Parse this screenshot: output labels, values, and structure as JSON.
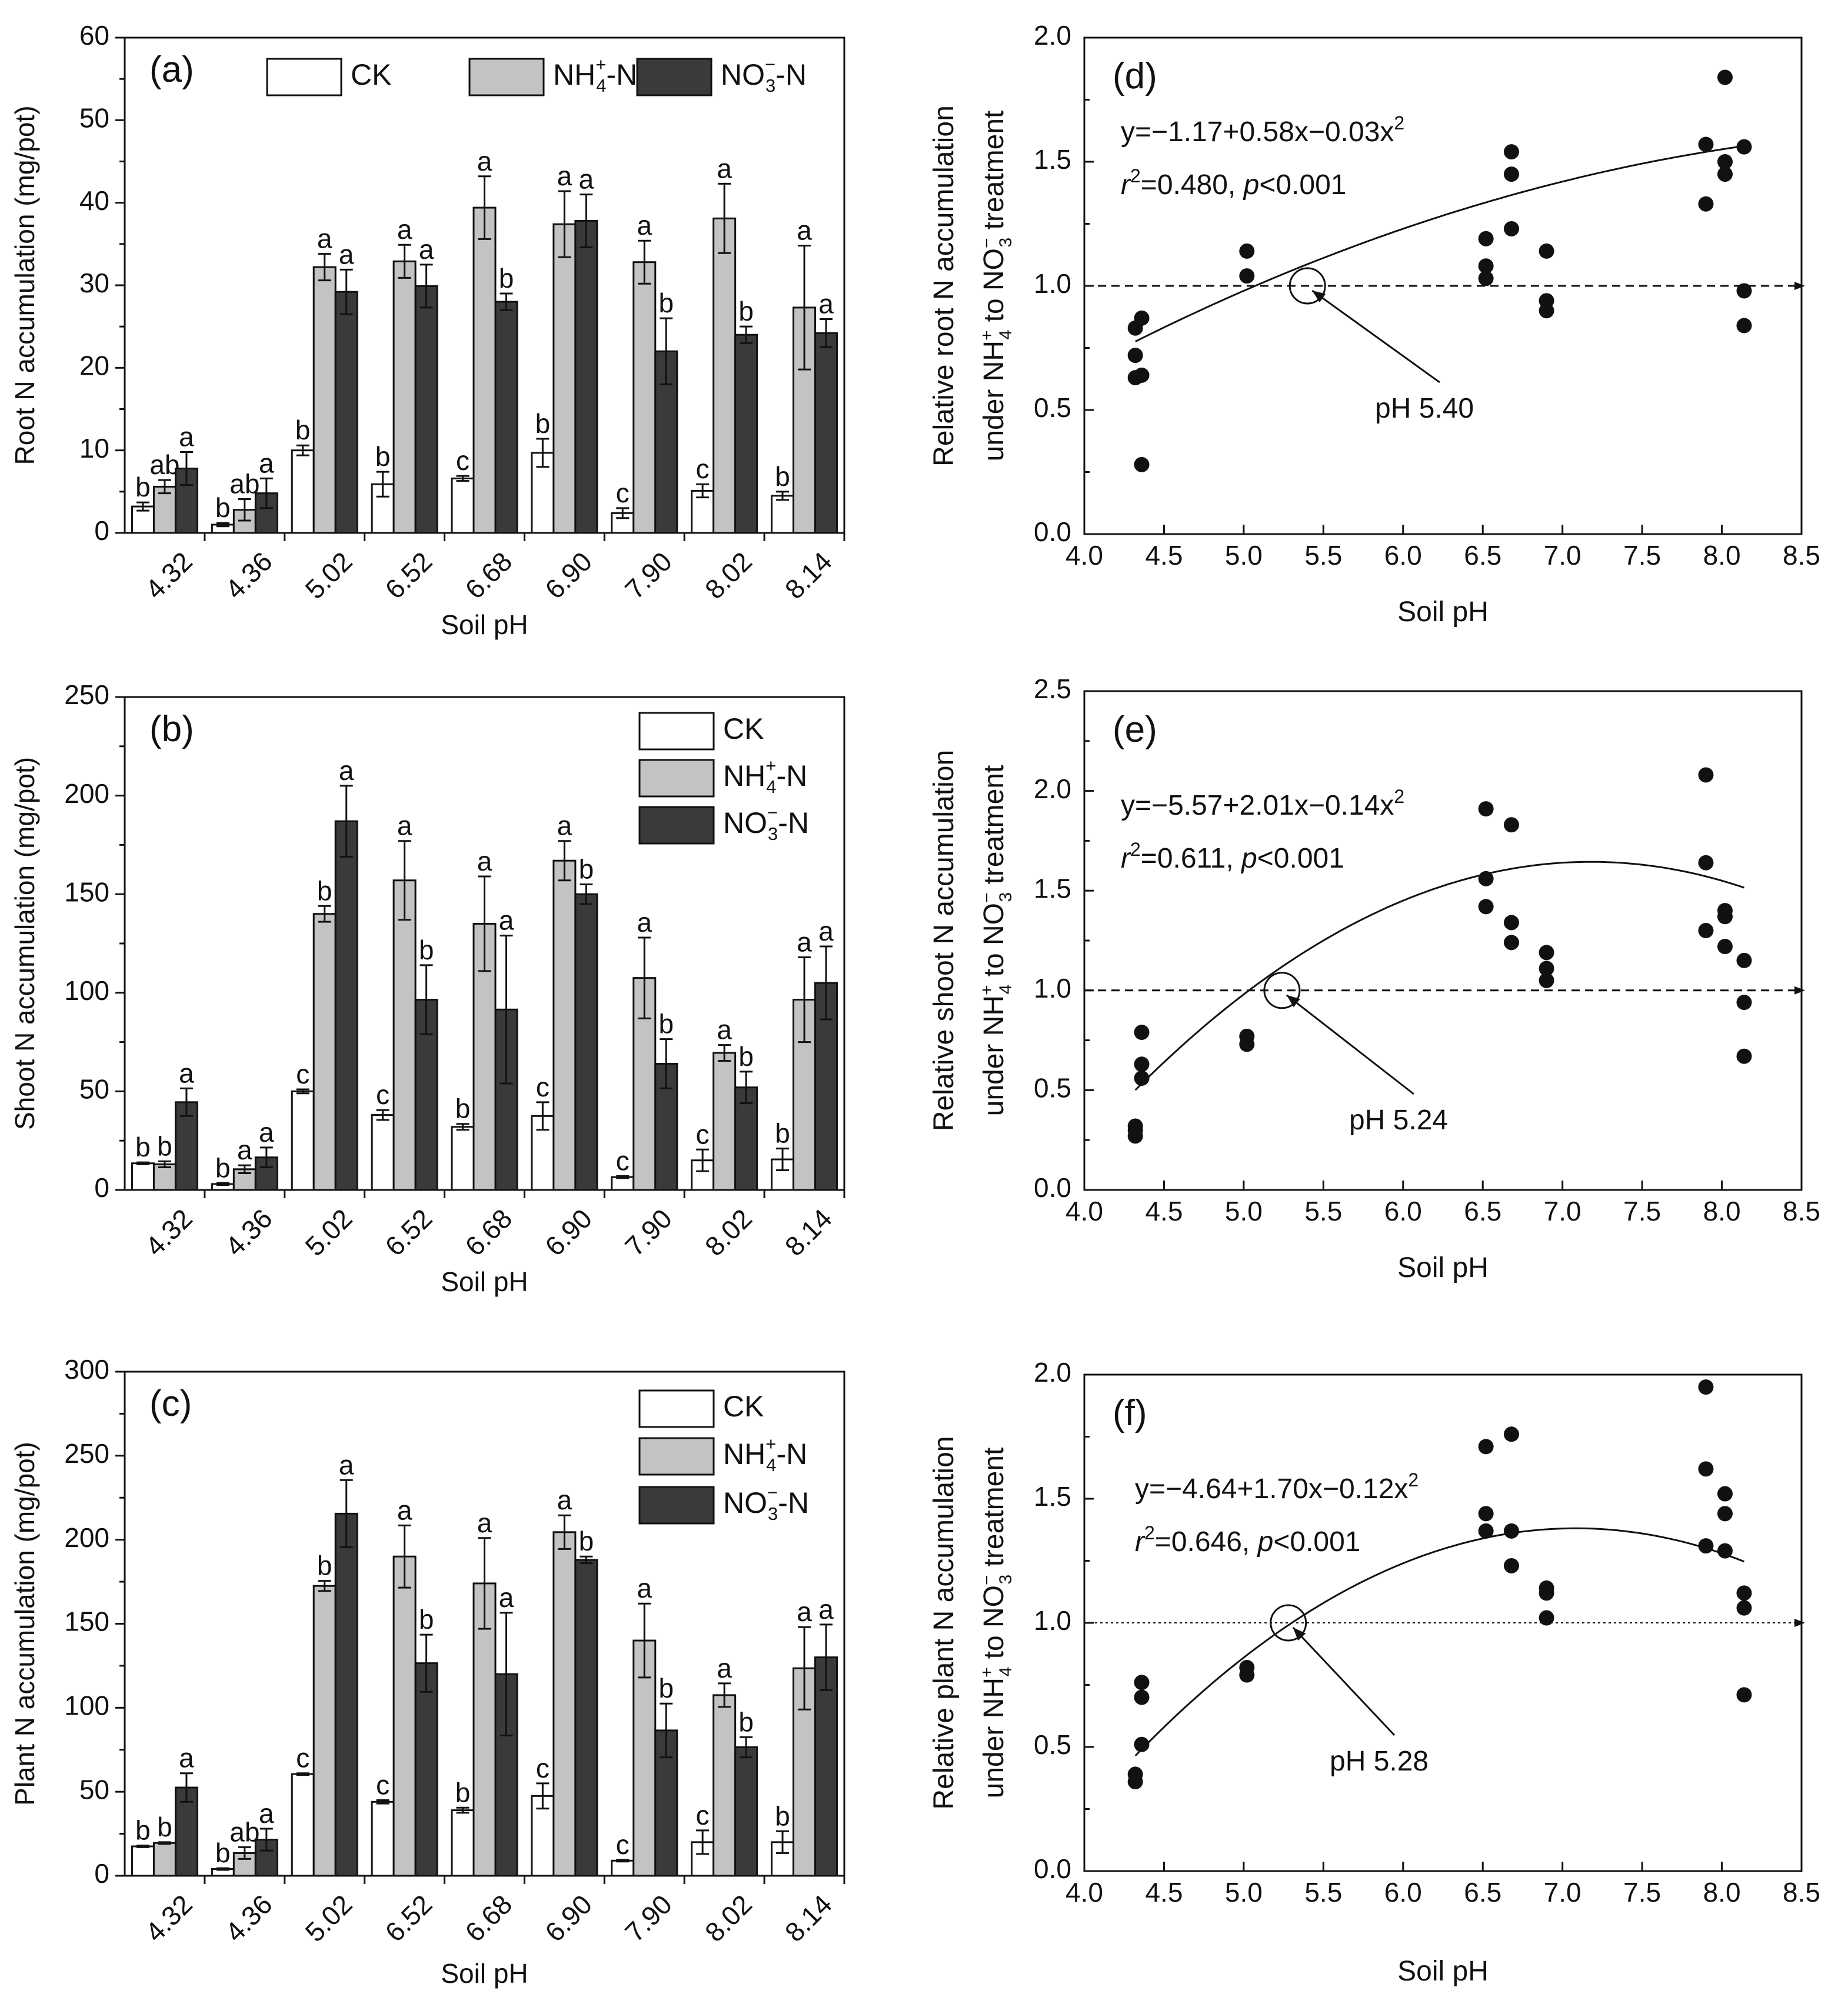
{
  "figure": {
    "colors": {
      "CK": "#ffffff",
      "NH4": "#c3c3c3",
      "NO3": "#3a3a3a",
      "ink": "#111111"
    }
  },
  "chart_data": [
    {
      "id": "a",
      "type": "bar",
      "panel_label": "(a)",
      "title": "",
      "xlabel": "Soil pH",
      "ylabel": "Root N accumulation (mg/pot)",
      "ylim": [
        0,
        60
      ],
      "yticks": [
        "0",
        "10",
        "20",
        "30",
        "40",
        "50",
        "60"
      ],
      "categories": [
        "4.32",
        "4.36",
        "5.02",
        "6.52",
        "6.68",
        "6.90",
        "7.90",
        "8.02",
        "8.14"
      ],
      "legend": {
        "layout": "row",
        "position": "top",
        "entries": [
          {
            "key": "CK",
            "base": "CK",
            "sup": "",
            "sub": "",
            "tail": ""
          },
          {
            "key": "NH4",
            "base": "NH",
            "sub": "4",
            "sup": "+",
            "tail": "-N"
          },
          {
            "key": "NO3",
            "base": "NO",
            "sub": "3",
            "sup": "−",
            "tail": "-N"
          }
        ]
      },
      "series": [
        {
          "name": "CK",
          "values": [
            3.2,
            1.0,
            10.0,
            5.9,
            6.6,
            9.7,
            2.4,
            5.1,
            4.5
          ],
          "errors": [
            0.5,
            0.2,
            0.6,
            1.5,
            0.3,
            1.7,
            0.6,
            0.8,
            0.5
          ],
          "letters": [
            "b",
            "b",
            "b",
            "b",
            "c",
            "b",
            "c",
            "c",
            "b"
          ]
        },
        {
          "name": "NH4+-N",
          "values": [
            5.6,
            2.8,
            32.2,
            32.9,
            39.4,
            37.4,
            32.8,
            38.1,
            27.3
          ],
          "errors": [
            0.8,
            1.3,
            1.6,
            2.0,
            3.8,
            4.0,
            2.6,
            4.2,
            7.5
          ],
          "letters": [
            "ab",
            "ab",
            "a",
            "a",
            "a",
            "a",
            "a",
            "a",
            "a"
          ]
        },
        {
          "name": "NO3--N",
          "values": [
            7.8,
            4.8,
            29.2,
            29.9,
            28.0,
            37.8,
            22.0,
            24.0,
            24.2
          ],
          "errors": [
            2.0,
            1.8,
            2.7,
            2.6,
            1.0,
            3.2,
            4.0,
            1.0,
            1.7
          ],
          "letters": [
            "a",
            "a",
            "a",
            "a",
            "b",
            "a",
            "b",
            "b",
            "a"
          ]
        }
      ]
    },
    {
      "id": "b",
      "type": "bar",
      "panel_label": "(b)",
      "title": "",
      "xlabel": "Soil pH",
      "ylabel": "Shoot N accumulation (mg/pot)",
      "ylim": [
        0,
        250
      ],
      "yticks": [
        "0",
        "50",
        "100",
        "150",
        "200",
        "250"
      ],
      "categories": [
        "4.32",
        "4.36",
        "5.02",
        "6.52",
        "6.68",
        "6.90",
        "7.90",
        "8.02",
        "8.14"
      ],
      "legend": {
        "layout": "column",
        "position": "top-right",
        "entries": [
          {
            "key": "CK",
            "base": "CK",
            "sup": "",
            "sub": "",
            "tail": ""
          },
          {
            "key": "NH4",
            "base": "NH",
            "sub": "4",
            "sup": "+",
            "tail": "-N"
          },
          {
            "key": "NO3",
            "base": "NO",
            "sub": "3",
            "sup": "−",
            "tail": "-N"
          }
        ]
      },
      "series": [
        {
          "name": "CK",
          "values": [
            13.5,
            3.0,
            50.0,
            38.0,
            32.0,
            37.5,
            6.5,
            15.0,
            15.5
          ],
          "errors": [
            0.5,
            0.5,
            1.0,
            2.5,
            1.5,
            7.0,
            0.5,
            5.5,
            5.5
          ],
          "letters": [
            "b",
            "b",
            "c",
            "c",
            "b",
            "c",
            "c",
            "c",
            "b"
          ]
        },
        {
          "name": "NH4+-N",
          "values": [
            13.0,
            10.5,
            140.0,
            157.0,
            135.0,
            167.0,
            107.5,
            69.5,
            96.5
          ],
          "errors": [
            1.5,
            2.0,
            4.0,
            20.0,
            24.0,
            10.0,
            20.5,
            4.0,
            21.5
          ],
          "letters": [
            "b",
            "a",
            "b",
            "a",
            "a",
            "a",
            "a",
            "a",
            "a"
          ]
        },
        {
          "name": "NO3--N",
          "values": [
            44.5,
            16.5,
            187.0,
            96.5,
            91.5,
            150.0,
            64.0,
            52.0,
            105.0
          ],
          "errors": [
            7.0,
            5.0,
            18.0,
            17.5,
            37.5,
            5.0,
            12.5,
            8.0,
            18.5
          ],
          "letters": [
            "a",
            "a",
            "a",
            "b",
            "a",
            "b",
            "b",
            "b",
            "a"
          ]
        }
      ]
    },
    {
      "id": "c",
      "type": "bar",
      "panel_label": "(c)",
      "title": "",
      "xlabel": "Soil pH",
      "ylabel": "Plant N accumulation (mg/pot)",
      "ylim": [
        0,
        300
      ],
      "yticks": [
        "0",
        "50",
        "100",
        "150",
        "200",
        "250",
        "300"
      ],
      "categories": [
        "4.32",
        "4.36",
        "5.02",
        "6.52",
        "6.68",
        "6.90",
        "7.90",
        "8.02",
        "8.14"
      ],
      "legend": {
        "layout": "column",
        "position": "top-right",
        "entries": [
          {
            "key": "CK",
            "base": "CK",
            "sup": "",
            "sub": "",
            "tail": ""
          },
          {
            "key": "NH4",
            "base": "NH",
            "sub": "4",
            "sup": "+",
            "tail": "-N"
          },
          {
            "key": "NO3",
            "base": "NO",
            "sub": "3",
            "sup": "−",
            "tail": "-N"
          }
        ]
      },
      "series": [
        {
          "name": "CK",
          "values": [
            17.5,
            4.0,
            60.5,
            44.0,
            39.0,
            47.5,
            9.0,
            20.0,
            20.0
          ],
          "errors": [
            0.5,
            0.5,
            0.5,
            1.0,
            1.5,
            7.5,
            0.5,
            7.0,
            6.5
          ],
          "letters": [
            "b",
            "b",
            "c",
            "c",
            "b",
            "c",
            "c",
            "c",
            "b"
          ]
        },
        {
          "name": "NH4+-N",
          "values": [
            19.5,
            13.5,
            172.5,
            190.0,
            174.0,
            204.5,
            140.0,
            107.5,
            123.5
          ],
          "errors": [
            0.5,
            3.5,
            3.0,
            18.5,
            27.0,
            10.0,
            22.0,
            7.0,
            24.5
          ],
          "letters": [
            "b",
            "ab",
            "b",
            "a",
            "a",
            "a",
            "a",
            "a",
            "a"
          ]
        },
        {
          "name": "NO3--N",
          "values": [
            52.5,
            21.5,
            215.5,
            126.5,
            120.0,
            188.0,
            86.5,
            76.5,
            130.0
          ],
          "errors": [
            8.5,
            6.5,
            20.0,
            17.0,
            36.5,
            2.0,
            16.0,
            6.0,
            19.5
          ],
          "letters": [
            "a",
            "a",
            "a",
            "b",
            "a",
            "b",
            "b",
            "b",
            "a"
          ]
        }
      ]
    },
    {
      "id": "d",
      "type": "scatter",
      "panel_label": "(d)",
      "xlabel": "Soil pH",
      "ylabel_line1": "Relative root N accumulation",
      "ylabel_line2": {
        "pre": "under NH",
        "sub1": "4",
        "sup1": "+",
        "mid": " to NO",
        "sub2": "3",
        "sup2": "−",
        "post": " treatment"
      },
      "xlim": [
        4.0,
        8.5
      ],
      "ylim": [
        0.0,
        2.0
      ],
      "xticks": [
        "4.0",
        "4.5",
        "5.0",
        "5.5",
        "6.0",
        "6.5",
        "7.0",
        "7.5",
        "8.0",
        "8.5"
      ],
      "yticks": [
        "0.0",
        "0.5",
        "1.0",
        "1.5",
        "2.0"
      ],
      "points": [
        [
          4.32,
          0.72
        ],
        [
          4.32,
          0.63
        ],
        [
          4.32,
          0.83
        ],
        [
          4.36,
          0.87
        ],
        [
          4.36,
          0.64
        ],
        [
          4.36,
          0.28
        ],
        [
          5.02,
          1.14
        ],
        [
          5.02,
          1.04
        ],
        [
          6.52,
          1.19
        ],
        [
          6.52,
          1.08
        ],
        [
          6.52,
          1.03
        ],
        [
          6.68,
          1.54
        ],
        [
          6.68,
          1.45
        ],
        [
          6.68,
          1.23
        ],
        [
          6.9,
          1.14
        ],
        [
          6.9,
          0.94
        ],
        [
          6.9,
          0.9
        ],
        [
          7.9,
          1.57
        ],
        [
          7.9,
          1.33
        ],
        [
          8.02,
          1.84
        ],
        [
          8.02,
          1.5
        ],
        [
          8.02,
          1.45
        ],
        [
          8.14,
          1.56
        ],
        [
          8.14,
          0.98
        ],
        [
          8.14,
          0.84
        ]
      ],
      "fit": {
        "a": -1.17,
        "b": 0.58,
        "c": -0.03,
        "x_range": [
          4.32,
          8.14
        ]
      },
      "equation": {
        "prefix": "y=−1.17+0.58x−0.03x",
        "sup": "2"
      },
      "stats": {
        "r": "r",
        "r_sup": "2",
        "r_value": "=0.480, ",
        "p": "p",
        "p_value": "<0.001"
      },
      "reference_y": 1.0,
      "crossing": {
        "x": 5.4,
        "label": "pH 5.40"
      }
    },
    {
      "id": "e",
      "type": "scatter",
      "panel_label": "(e)",
      "xlabel": "Soil pH",
      "ylabel_line1": "Relative shoot N accumulation",
      "ylabel_line2": {
        "pre": "under NH",
        "sub1": "4",
        "sup1": "+",
        "mid": " to NO",
        "sub2": "3",
        "sup2": "−",
        "post": " treatment"
      },
      "xlim": [
        4.0,
        8.5
      ],
      "ylim": [
        0.0,
        2.5
      ],
      "xticks": [
        "4.0",
        "4.5",
        "5.0",
        "5.5",
        "6.0",
        "6.5",
        "7.0",
        "7.5",
        "8.0",
        "8.5"
      ],
      "yticks": [
        "0.0",
        "0.5",
        "1.0",
        "1.5",
        "2.0",
        "2.5"
      ],
      "points": [
        [
          4.32,
          0.32
        ],
        [
          4.32,
          0.3
        ],
        [
          4.32,
          0.27
        ],
        [
          4.36,
          0.79
        ],
        [
          4.36,
          0.63
        ],
        [
          4.36,
          0.56
        ],
        [
          5.02,
          0.77
        ],
        [
          5.02,
          0.73
        ],
        [
          6.52,
          1.91
        ],
        [
          6.52,
          1.56
        ],
        [
          6.52,
          1.42
        ],
        [
          6.68,
          1.83
        ],
        [
          6.68,
          1.34
        ],
        [
          6.68,
          1.24
        ],
        [
          6.9,
          1.19
        ],
        [
          6.9,
          1.11
        ],
        [
          6.9,
          1.05
        ],
        [
          7.9,
          2.08
        ],
        [
          7.9,
          1.64
        ],
        [
          7.9,
          1.3
        ],
        [
          8.02,
          1.4
        ],
        [
          8.02,
          1.37
        ],
        [
          8.02,
          1.22
        ],
        [
          8.14,
          1.15
        ],
        [
          8.14,
          0.94
        ],
        [
          8.14,
          0.67
        ]
      ],
      "fit": {
        "a": -5.57,
        "b": 2.01,
        "c": -0.14,
        "x_range": [
          4.32,
          8.14
        ]
      },
      "equation": {
        "prefix": "y=−5.57+2.01x−0.14x",
        "sup": "2"
      },
      "stats": {
        "r": "r",
        "r_sup": "2",
        "r_value": "=0.611, ",
        "p": "p",
        "p_value": "<0.001"
      },
      "reference_y": 1.0,
      "crossing": {
        "x": 5.24,
        "label": "pH 5.24"
      }
    },
    {
      "id": "f",
      "type": "scatter",
      "panel_label": "(f)",
      "xlabel": "Soil pH",
      "ylabel_line1": "Relative plant N accumulation",
      "ylabel_line2": {
        "pre": "under NH",
        "sub1": "4",
        "sup1": "+",
        "mid": " to NO",
        "sub2": "3",
        "sup2": "−",
        "post": " treatment"
      },
      "xlim": [
        4.0,
        8.5
      ],
      "ylim": [
        0.0,
        2.0
      ],
      "xticks": [
        "4.0",
        "4.5",
        "5.0",
        "5.5",
        "6.0",
        "6.5",
        "7.0",
        "7.5",
        "8.0",
        "8.5"
      ],
      "yticks": [
        "0.0",
        "0.5",
        "1.0",
        "1.5",
        "2.0"
      ],
      "points": [
        [
          4.32,
          0.39
        ],
        [
          4.32,
          0.36
        ],
        [
          4.36,
          0.76
        ],
        [
          4.36,
          0.7
        ],
        [
          4.36,
          0.51
        ],
        [
          5.02,
          0.82
        ],
        [
          5.02,
          0.79
        ],
        [
          6.52,
          1.71
        ],
        [
          6.52,
          1.44
        ],
        [
          6.52,
          1.37
        ],
        [
          6.68,
          1.76
        ],
        [
          6.68,
          1.37
        ],
        [
          6.68,
          1.23
        ],
        [
          6.9,
          1.14
        ],
        [
          6.9,
          1.12
        ],
        [
          6.9,
          1.02
        ],
        [
          7.9,
          1.95
        ],
        [
          7.9,
          1.62
        ],
        [
          7.9,
          1.31
        ],
        [
          8.02,
          1.52
        ],
        [
          8.02,
          1.44
        ],
        [
          8.02,
          1.29
        ],
        [
          8.14,
          1.12
        ],
        [
          8.14,
          1.06
        ],
        [
          8.14,
          0.71
        ]
      ],
      "fit": {
        "a": -4.64,
        "b": 1.7,
        "c": -0.12,
        "x_range": [
          4.32,
          8.14
        ]
      },
      "equation": {
        "prefix": "y=−4.64+1.70x−0.12x",
        "sup": "2"
      },
      "stats": {
        "r": "r",
        "r_sup": "2",
        "r_value": "=0.646, ",
        "p": "p",
        "p_value": "<0.001"
      },
      "reference_y": 1.0,
      "crossing": {
        "x": 5.28,
        "label": "pH 5.28"
      }
    }
  ]
}
